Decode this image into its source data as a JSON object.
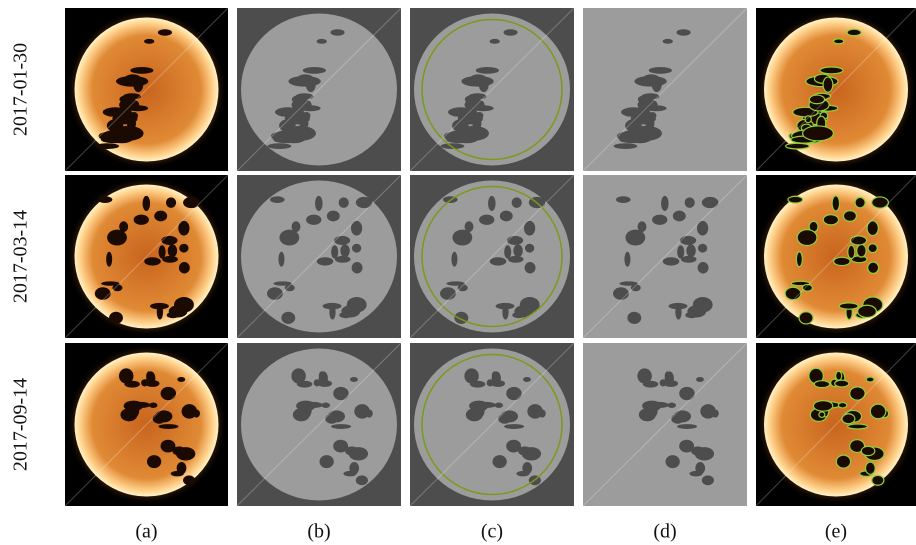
{
  "rows": [
    {
      "label": "2017-01-30"
    },
    {
      "label": "2017-03-14"
    },
    {
      "label": "2017-09-14"
    }
  ],
  "columns": [
    {
      "label": "(a)"
    },
    {
      "label": "(b)"
    },
    {
      "label": "(c)"
    },
    {
      "label": "(d)"
    },
    {
      "label": "(e)"
    }
  ]
}
